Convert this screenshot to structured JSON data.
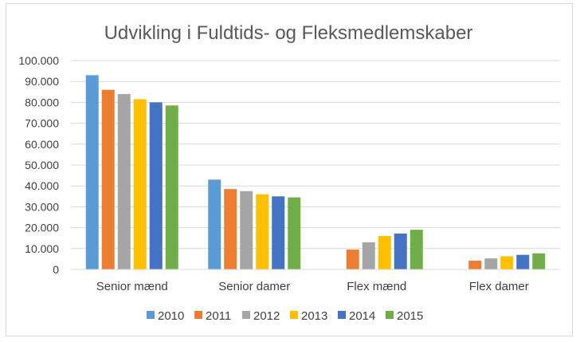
{
  "chart_data": {
    "type": "bar",
    "title": "Udvikling i Fuldtids- og Fleksmedlemskaber",
    "xlabel": "",
    "ylabel": "",
    "ylim": [
      0,
      100000
    ],
    "yticks": [
      0,
      10000,
      20000,
      30000,
      40000,
      50000,
      60000,
      70000,
      80000,
      90000,
      100000
    ],
    "ytick_labels": [
      "0",
      "10.000",
      "20.000",
      "30.000",
      "40.000",
      "50.000",
      "60.000",
      "70.000",
      "80.000",
      "90.000",
      "100.000"
    ],
    "categories": [
      "Senior mænd",
      "Senior damer",
      "Flex mænd",
      "Flex damer"
    ],
    "series": [
      {
        "name": "2010",
        "color": "#5b9bd5",
        "values": [
          93000,
          43000,
          null,
          null
        ]
      },
      {
        "name": "2011",
        "color": "#ed7d31",
        "values": [
          86000,
          38500,
          9500,
          4200
        ]
      },
      {
        "name": "2012",
        "color": "#a5a5a5",
        "values": [
          84000,
          37500,
          13000,
          5300
        ]
      },
      {
        "name": "2013",
        "color": "#ffc000",
        "values": [
          81500,
          36000,
          16000,
          6300
        ]
      },
      {
        "name": "2014",
        "color": "#4472c4",
        "values": [
          80000,
          35000,
          17200,
          7000
        ]
      },
      {
        "name": "2015",
        "color": "#70ad47",
        "values": [
          78500,
          34500,
          19000,
          7700
        ]
      }
    ],
    "grid": true,
    "legend": "bottom"
  }
}
